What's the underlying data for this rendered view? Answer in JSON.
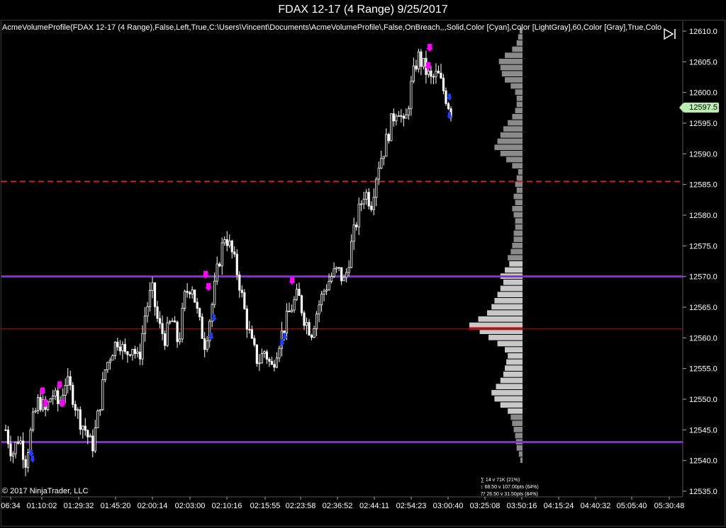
{
  "window": {
    "title": "FDAX 12-17 (4 Range)  9/25/2017"
  },
  "indicator": {
    "label": "AcmeVolumeProfile(FDAX 12-17 (4 Range),False,Left,True,C:\\Users\\Vincent\\Documents\\AcmeVolumeProfile\\,False,OnBreach,,,Solid,Color [Cyan],Color [LightGray],60,Color [Gray],True,Colo"
  },
  "footer": {
    "copyright": "© 2017 NinjaTrader, LLC"
  },
  "price_axis": {
    "ticks": [
      "12610.0",
      "12605.0",
      "12600.0",
      "12595.0",
      "12590.0",
      "12585.0",
      "12580.0",
      "12575.0",
      "12570.0",
      "12565.0",
      "12560.0",
      "12555.0",
      "12550.0",
      "12545.0",
      "12540.0",
      "12535.0"
    ],
    "last_price": "12597.5"
  },
  "time_axis": {
    "ticks": [
      "06:34",
      "01:10:02",
      "01:29:32",
      "01:45:20",
      "02:00:14",
      "02:03:00",
      "02:10:16",
      "02:15:55",
      "02:23:58",
      "02:36:52",
      "02:44:11",
      "02:54:23",
      "03:00:40",
      "03:25:08",
      "03:50:16",
      "04:15:24",
      "04:40:32",
      "05:05:40",
      "05:30:48"
    ]
  },
  "profile_stats": {
    "line1": "∑ 14 v 71K (21%)",
    "line2": "↕ 68.50 v 107.00pts (64%)",
    "line3": "⁇ 26.50 v 31.50pts (84%)"
  },
  "levels": {
    "dashed_red": 12585.5,
    "purple_upper": 12570,
    "thin_red": 12561.5,
    "purple_lower": 12543,
    "poc": 12561.5
  },
  "colors": {
    "background": "#000000",
    "candle": "#ffffff",
    "magenta_signal": "#ff00ff",
    "blue_signal": "#1f3cff",
    "purple_level": "#8a2be2",
    "red_level": "#d0202e",
    "profile_bar": "#bfbfbf",
    "poc": "#cc1010",
    "last_price_bg": "#b9f0b0"
  },
  "chart_data": {
    "type": "candlestick",
    "instrument": "FDAX 12-17",
    "bar_type": "4 Range",
    "date": "9/25/2017",
    "ylim": [
      12535,
      12611
    ],
    "x_ticks": [
      "06:34",
      "01:10:02",
      "01:29:32",
      "01:45:20",
      "02:00:14",
      "02:03:00",
      "02:10:16",
      "02:15:55",
      "02:23:58",
      "02:36:52",
      "02:44:11",
      "02:54:23",
      "03:00:40",
      "03:25:08",
      "03:50:16",
      "04:15:24",
      "04:40:32",
      "05:05:40",
      "05:30:48"
    ],
    "close_path": [
      12545,
      12541,
      12544,
      12540,
      12546,
      12550,
      12548,
      12551,
      12549,
      12553,
      12551,
      12547,
      12545,
      12542,
      12548,
      12555,
      12558,
      12560,
      12557,
      12559,
      12556,
      12564,
      12568,
      12562,
      12560,
      12563,
      12559,
      12567,
      12569,
      12563,
      12559,
      12565,
      12572,
      12577,
      12574,
      12570,
      12564,
      12559,
      12556,
      12558,
      12555,
      12559,
      12562,
      12565,
      12567,
      12563,
      12561,
      12565,
      12568,
      12570,
      12571,
      12569,
      12575,
      12580,
      12584,
      12582,
      12588,
      12591,
      12595,
      12598,
      12594,
      12601,
      12606,
      12604,
      12602,
      12603,
      12600,
      12597
    ],
    "volume_profile": [
      [
        12540,
        3
      ],
      [
        12541,
        5
      ],
      [
        12542,
        8
      ],
      [
        12543,
        9
      ],
      [
        12544,
        10
      ],
      [
        12545,
        12
      ],
      [
        12546,
        14
      ],
      [
        12547,
        16
      ],
      [
        12548,
        20
      ],
      [
        12549,
        30
      ],
      [
        12550,
        38
      ],
      [
        12551,
        42
      ],
      [
        12552,
        36
      ],
      [
        12553,
        30
      ],
      [
        12554,
        26
      ],
      [
        12555,
        24
      ],
      [
        12556,
        22
      ],
      [
        12557,
        20
      ],
      [
        12558,
        24
      ],
      [
        12559,
        34
      ],
      [
        12560,
        46
      ],
      [
        12561,
        58
      ],
      [
        12562,
        72
      ],
      [
        12563,
        60
      ],
      [
        12564,
        48
      ],
      [
        12565,
        42
      ],
      [
        12566,
        38
      ],
      [
        12567,
        34
      ],
      [
        12568,
        30
      ],
      [
        12569,
        26
      ],
      [
        12570,
        30
      ],
      [
        12571,
        24
      ],
      [
        12572,
        18
      ],
      [
        12573,
        20
      ],
      [
        12574,
        16
      ],
      [
        12575,
        14
      ],
      [
        12576,
        12
      ],
      [
        12577,
        12
      ],
      [
        12578,
        10
      ],
      [
        12579,
        10
      ],
      [
        12580,
        12
      ],
      [
        12581,
        14
      ],
      [
        12582,
        10
      ],
      [
        12583,
        12
      ],
      [
        12584,
        8
      ],
      [
        12585,
        10
      ],
      [
        12586,
        8
      ],
      [
        12587,
        6
      ],
      [
        12588,
        14
      ],
      [
        12589,
        22
      ],
      [
        12590,
        30
      ],
      [
        12591,
        38
      ],
      [
        12592,
        34
      ],
      [
        12593,
        30
      ],
      [
        12594,
        26
      ],
      [
        12595,
        20
      ],
      [
        12596,
        14
      ],
      [
        12597,
        10
      ],
      [
        12598,
        8
      ],
      [
        12599,
        8
      ],
      [
        12600,
        10
      ],
      [
        12601,
        16
      ],
      [
        12602,
        24
      ],
      [
        12603,
        28
      ],
      [
        12604,
        30
      ],
      [
        12605,
        32
      ],
      [
        12606,
        24
      ],
      [
        12607,
        14
      ],
      [
        12608,
        8
      ],
      [
        12609,
        6
      ],
      [
        12610,
        4
      ]
    ]
  }
}
